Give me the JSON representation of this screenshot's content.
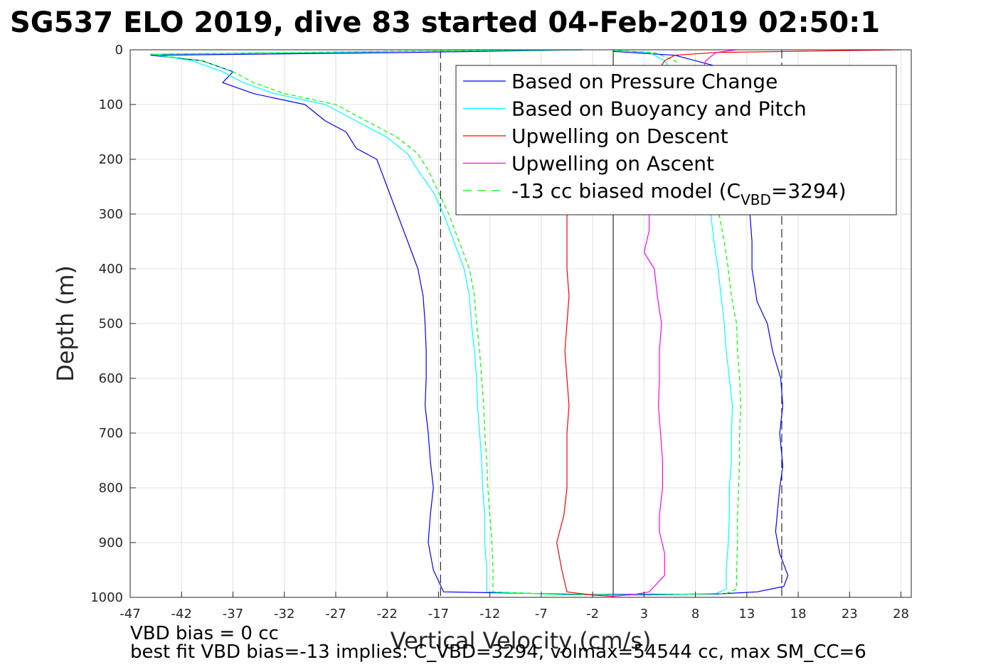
{
  "title": "SG537 ELO 2019, dive 83 started 04-Feb-2019 02:50:1",
  "notes": {
    "line1": "VBD bias = 0 cc",
    "line2": "best fit VBD bias=-13 implies: C_VBD=3294, volmax=54544 cc, max SM_CC=6"
  },
  "colors": {
    "pressure": "#0000ff",
    "buoyancy": "#00ffff",
    "upwelling_descent": "#ff0000",
    "upwelling_ascent": "#ff00ff",
    "biased_model": "#00ff00",
    "grid": "#e0e0e0"
  },
  "chart_data": {
    "type": "line",
    "xlabel": "Vertical Velocity (cm/s)",
    "ylabel": "Depth (m)",
    "xlim": [
      -47,
      29
    ],
    "ylim": [
      0,
      1000
    ],
    "y_reversed": true,
    "grid": true,
    "x_ticks": [
      -47,
      -42,
      -37,
      -32,
      -27,
      -22,
      -17,
      -12,
      -7,
      -2,
      3,
      8,
      13,
      18,
      23,
      28
    ],
    "y_ticks": [
      0,
      100,
      200,
      300,
      400,
      500,
      600,
      700,
      800,
      900,
      1000
    ],
    "reference_lines": [
      {
        "x": -16.8,
        "style": "dashed"
      },
      {
        "x": 16.4,
        "style": "dashed"
      },
      {
        "x": 0,
        "style": "solid"
      }
    ],
    "legend": {
      "location": "top-right",
      "entries": [
        {
          "label": "Based on Pressure Change",
          "series": "pressure"
        },
        {
          "label": "Based on Buoyancy and Pitch",
          "series": "buoyancy"
        },
        {
          "label": "Upwelling on Descent",
          "series": "upwelling_descent"
        },
        {
          "label": "Upwelling on Ascent",
          "series": "upwelling_ascent"
        },
        {
          "label_prefix": "-13 cc biased model (C",
          "label_sub": "VBD",
          "label_suffix": "=3294)",
          "series": "biased_model"
        }
      ]
    },
    "series": [
      {
        "key": "pressure",
        "dashed": false,
        "width": 1.2,
        "points": [
          [
            -3,
            0
          ],
          [
            -20,
            5
          ],
          [
            -45,
            10
          ],
          [
            -40,
            20
          ],
          [
            -37,
            40
          ],
          [
            -38,
            60
          ],
          [
            -35,
            80
          ],
          [
            -30,
            100
          ],
          [
            -28,
            130
          ],
          [
            -26,
            150
          ],
          [
            -25,
            180
          ],
          [
            -23,
            200
          ],
          [
            -22,
            250
          ],
          [
            -21,
            300
          ],
          [
            -20,
            350
          ],
          [
            -19,
            400
          ],
          [
            -18.5,
            450
          ],
          [
            -18.3,
            500
          ],
          [
            -18.2,
            550
          ],
          [
            -18.2,
            600
          ],
          [
            -18.3,
            650
          ],
          [
            -18,
            700
          ],
          [
            -17.8,
            750
          ],
          [
            -17.5,
            800
          ],
          [
            -17.8,
            850
          ],
          [
            -18,
            900
          ],
          [
            -17.5,
            950
          ],
          [
            -16.5,
            990
          ],
          [
            -2,
            995
          ],
          [
            10,
            994
          ],
          [
            14,
            990
          ],
          [
            16.6,
            980
          ],
          [
            17,
            960
          ],
          [
            16.2,
            920
          ],
          [
            15.8,
            880
          ],
          [
            16,
            840
          ],
          [
            16.2,
            800
          ],
          [
            16.5,
            760
          ],
          [
            16.2,
            700
          ],
          [
            16.5,
            650
          ],
          [
            16.3,
            600
          ],
          [
            15.5,
            550
          ],
          [
            15,
            500
          ],
          [
            14,
            460
          ],
          [
            13.5,
            400
          ],
          [
            13.5,
            350
          ],
          [
            13.3,
            300
          ],
          [
            12.5,
            250
          ],
          [
            12,
            200
          ],
          [
            11.5,
            150
          ],
          [
            11,
            100
          ],
          [
            10.5,
            60
          ],
          [
            10,
            30
          ],
          [
            6,
            10
          ],
          [
            0,
            3
          ]
        ]
      },
      {
        "key": "buoyancy",
        "dashed": false,
        "width": 1.2,
        "points": [
          [
            -3,
            0
          ],
          [
            -20,
            3
          ],
          [
            -45,
            8
          ],
          [
            -41,
            20
          ],
          [
            -38,
            40
          ],
          [
            -36,
            60
          ],
          [
            -33,
            80
          ],
          [
            -28,
            100
          ],
          [
            -25,
            130
          ],
          [
            -22,
            160
          ],
          [
            -20,
            190
          ],
          [
            -19,
            220
          ],
          [
            -17.5,
            260
          ],
          [
            -16.5,
            300
          ],
          [
            -15.5,
            350
          ],
          [
            -14.5,
            400
          ],
          [
            -14,
            450
          ],
          [
            -13.8,
            500
          ],
          [
            -13.5,
            550
          ],
          [
            -13.3,
            600
          ],
          [
            -13.2,
            650
          ],
          [
            -13,
            700
          ],
          [
            -12.8,
            750
          ],
          [
            -12.7,
            800
          ],
          [
            -12.5,
            850
          ],
          [
            -12.5,
            900
          ],
          [
            -12.3,
            950
          ],
          [
            -12.3,
            990
          ],
          [
            -5,
            995
          ],
          [
            3,
            996
          ],
          [
            10,
            993
          ],
          [
            11,
            985
          ],
          [
            11,
            950
          ],
          [
            11.2,
            900
          ],
          [
            11.3,
            850
          ],
          [
            11.3,
            800
          ],
          [
            11.5,
            750
          ],
          [
            11.5,
            700
          ],
          [
            11.6,
            650
          ],
          [
            11.3,
            600
          ],
          [
            11,
            550
          ],
          [
            10.8,
            500
          ],
          [
            10.5,
            450
          ],
          [
            10.2,
            400
          ],
          [
            9.8,
            350
          ],
          [
            9.5,
            300
          ],
          [
            9,
            250
          ],
          [
            8.5,
            200
          ],
          [
            8,
            150
          ],
          [
            7.5,
            100
          ],
          [
            6.5,
            60
          ],
          [
            5,
            20
          ],
          [
            3.5,
            5
          ],
          [
            0,
            1
          ]
        ]
      },
      {
        "key": "biased_model",
        "dashed": true,
        "width": 1.2,
        "points": [
          [
            -4,
            0
          ],
          [
            -22,
            3
          ],
          [
            -45,
            8
          ],
          [
            -40,
            20
          ],
          [
            -37,
            40
          ],
          [
            -35,
            60
          ],
          [
            -32,
            80
          ],
          [
            -27,
            100
          ],
          [
            -24,
            130
          ],
          [
            -21,
            160
          ],
          [
            -19,
            190
          ],
          [
            -18,
            220
          ],
          [
            -17,
            260
          ],
          [
            -16,
            300
          ],
          [
            -15,
            350
          ],
          [
            -14,
            400
          ],
          [
            -13.5,
            450
          ],
          [
            -13.3,
            500
          ],
          [
            -13,
            550
          ],
          [
            -12.8,
            600
          ],
          [
            -12.6,
            650
          ],
          [
            -12.5,
            700
          ],
          [
            -12.3,
            750
          ],
          [
            -12.2,
            800
          ],
          [
            -12,
            850
          ],
          [
            -11.8,
            900
          ],
          [
            -11.7,
            950
          ],
          [
            -11.7,
            990
          ],
          [
            -5,
            995
          ],
          [
            3,
            996
          ],
          [
            11,
            993
          ],
          [
            12,
            985
          ],
          [
            12,
            950
          ],
          [
            12.1,
            900
          ],
          [
            12.1,
            850
          ],
          [
            12.2,
            800
          ],
          [
            12.3,
            750
          ],
          [
            12.3,
            700
          ],
          [
            12.4,
            650
          ],
          [
            12.3,
            600
          ],
          [
            12.1,
            550
          ],
          [
            12,
            500
          ],
          [
            11.5,
            450
          ],
          [
            11.2,
            400
          ],
          [
            10.8,
            350
          ],
          [
            10.3,
            300
          ],
          [
            9.8,
            250
          ],
          [
            9.4,
            200
          ],
          [
            9,
            150
          ],
          [
            8.5,
            100
          ],
          [
            7.5,
            60
          ],
          [
            6,
            20
          ],
          [
            4,
            5
          ],
          [
            0,
            1
          ]
        ]
      },
      {
        "key": "upwelling_descent",
        "dashed": false,
        "width": 1.2,
        "points": [
          [
            28,
            0
          ],
          [
            10,
            5
          ],
          [
            6,
            10
          ],
          [
            5,
            20
          ],
          [
            4,
            50
          ],
          [
            3,
            100
          ],
          [
            2,
            200
          ],
          [
            -4.5,
            300
          ],
          [
            -4.5,
            350
          ],
          [
            -4.5,
            400
          ],
          [
            -4.3,
            450
          ],
          [
            -4.5,
            500
          ],
          [
            -4.7,
            550
          ],
          [
            -4.5,
            600
          ],
          [
            -4.3,
            650
          ],
          [
            -4.5,
            700
          ],
          [
            -4.5,
            750
          ],
          [
            -4.5,
            800
          ],
          [
            -4.8,
            850
          ],
          [
            -5.5,
            900
          ],
          [
            -5,
            950
          ],
          [
            -4.5,
            990
          ],
          [
            -2,
            996
          ],
          [
            0,
            998
          ]
        ]
      },
      {
        "key": "upwelling_ascent",
        "dashed": false,
        "width": 1.2,
        "points": [
          [
            0,
            998
          ],
          [
            2,
            995
          ],
          [
            3.5,
            990
          ],
          [
            4,
            980
          ],
          [
            5,
            960
          ],
          [
            5,
            920
          ],
          [
            4.5,
            880
          ],
          [
            4.5,
            850
          ],
          [
            4.8,
            800
          ],
          [
            4.8,
            750
          ],
          [
            4.6,
            700
          ],
          [
            4.4,
            650
          ],
          [
            4.5,
            600
          ],
          [
            4.5,
            550
          ],
          [
            4.7,
            500
          ],
          [
            4.3,
            450
          ],
          [
            4,
            400
          ],
          [
            3,
            370
          ],
          [
            3.5,
            330
          ],
          [
            3.5,
            300
          ],
          [
            6,
            200
          ],
          [
            8,
            100
          ],
          [
            8.5,
            50
          ],
          [
            9,
            20
          ],
          [
            10,
            5
          ],
          [
            12,
            0
          ]
        ]
      }
    ]
  }
}
